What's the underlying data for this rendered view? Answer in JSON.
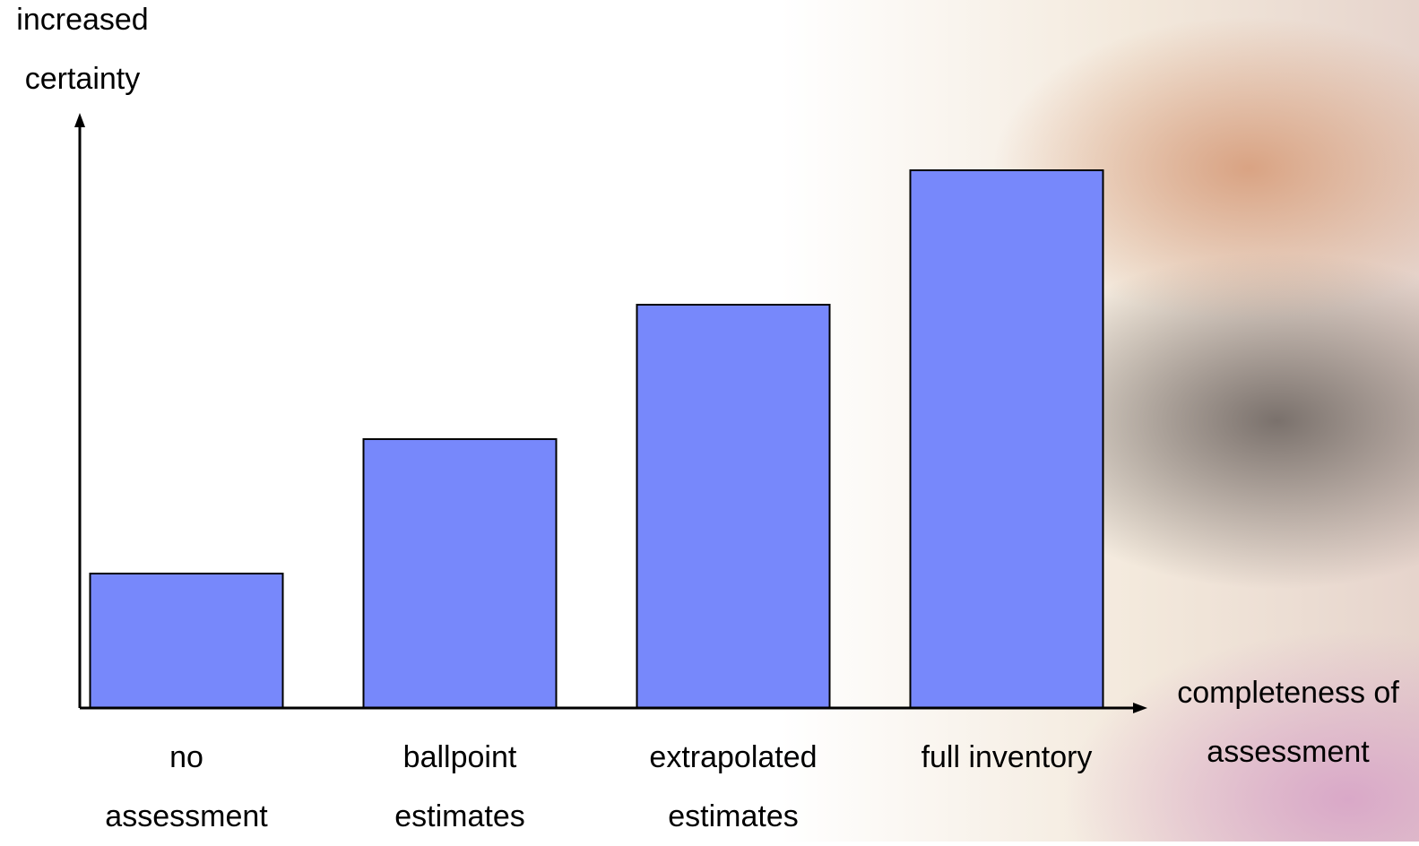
{
  "chart_data": {
    "type": "bar",
    "y_label": "increased certainty",
    "x_label": "completeness of assessment",
    "categories": [
      "no assessment",
      "ballpoint estimates",
      "extrapolated estimates",
      "full inventory"
    ],
    "values": [
      1,
      2,
      3,
      4
    ],
    "color": "#7788fb",
    "ylim": [
      0,
      4.4
    ]
  }
}
